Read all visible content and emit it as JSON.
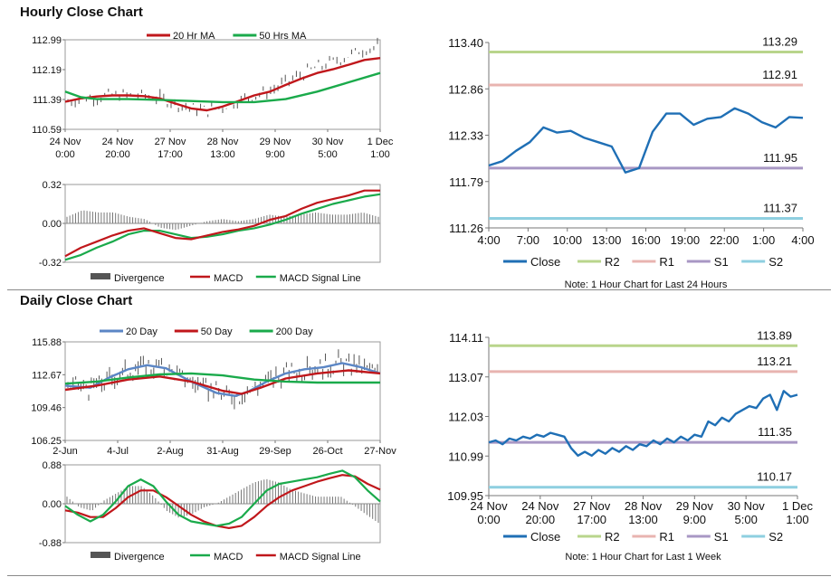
{
  "hourly": {
    "title": "Hourly Close Chart",
    "price": {
      "legend": [
        "20 Hr MA",
        "50 Hrs MA"
      ],
      "y_ticks": [
        "112.99",
        "112.19",
        "111.39",
        "110.59"
      ],
      "x_ticks": [
        [
          "24 Nov",
          "0:00"
        ],
        [
          "24 Nov",
          "20:00"
        ],
        [
          "27 Nov",
          "17:00"
        ],
        [
          "28 Nov",
          "13:00"
        ],
        [
          "29 Nov",
          "9:00"
        ],
        [
          "30 Nov",
          "5:00"
        ],
        [
          "1 Dec",
          "1:00"
        ]
      ],
      "ylim": [
        110.59,
        112.99
      ],
      "ma20": [
        [
          0,
          111.33
        ],
        [
          0.05,
          111.42
        ],
        [
          0.1,
          111.47
        ],
        [
          0.15,
          111.5
        ],
        [
          0.2,
          111.5
        ],
        [
          0.25,
          111.48
        ],
        [
          0.3,
          111.42
        ],
        [
          0.35,
          111.28
        ],
        [
          0.4,
          111.15
        ],
        [
          0.45,
          111.1
        ],
        [
          0.5,
          111.2
        ],
        [
          0.55,
          111.35
        ],
        [
          0.6,
          111.5
        ],
        [
          0.65,
          111.6
        ],
        [
          0.7,
          111.78
        ],
        [
          0.75,
          111.95
        ],
        [
          0.8,
          112.1
        ],
        [
          0.85,
          112.2
        ],
        [
          0.9,
          112.32
        ],
        [
          0.95,
          112.45
        ],
        [
          1.0,
          112.5
        ]
      ],
      "ma50": [
        [
          0,
          111.6
        ],
        [
          0.05,
          111.45
        ],
        [
          0.1,
          111.4
        ],
        [
          0.2,
          111.4
        ],
        [
          0.3,
          111.38
        ],
        [
          0.4,
          111.35
        ],
        [
          0.5,
          111.32
        ],
        [
          0.6,
          111.32
        ],
        [
          0.7,
          111.4
        ],
        [
          0.8,
          111.6
        ],
        [
          0.9,
          111.85
        ],
        [
          1.0,
          112.1
        ]
      ]
    },
    "macd": {
      "legend": [
        "Divergence",
        "MACD",
        "MACD Signal Line"
      ],
      "y_ticks": [
        "0.32",
        "0.00",
        "-0.32"
      ],
      "ylim": [
        -0.32,
        0.32
      ],
      "macd": [
        [
          0,
          -0.27
        ],
        [
          0.05,
          -0.2
        ],
        [
          0.1,
          -0.15
        ],
        [
          0.15,
          -0.1
        ],
        [
          0.2,
          -0.06
        ],
        [
          0.25,
          -0.04
        ],
        [
          0.3,
          -0.08
        ],
        [
          0.35,
          -0.12
        ],
        [
          0.4,
          -0.13
        ],
        [
          0.45,
          -0.1
        ],
        [
          0.5,
          -0.07
        ],
        [
          0.55,
          -0.05
        ],
        [
          0.6,
          -0.02
        ],
        [
          0.65,
          0.03
        ],
        [
          0.7,
          0.06
        ],
        [
          0.75,
          0.12
        ],
        [
          0.8,
          0.17
        ],
        [
          0.85,
          0.2
        ],
        [
          0.9,
          0.23
        ],
        [
          0.95,
          0.27
        ],
        [
          1.0,
          0.27
        ]
      ],
      "signal": [
        [
          0,
          -0.3
        ],
        [
          0.05,
          -0.26
        ],
        [
          0.1,
          -0.2
        ],
        [
          0.15,
          -0.15
        ],
        [
          0.2,
          -0.09
        ],
        [
          0.25,
          -0.06
        ],
        [
          0.3,
          -0.06
        ],
        [
          0.35,
          -0.09
        ],
        [
          0.4,
          -0.12
        ],
        [
          0.45,
          -0.11
        ],
        [
          0.5,
          -0.09
        ],
        [
          0.55,
          -0.06
        ],
        [
          0.6,
          -0.04
        ],
        [
          0.65,
          -0.01
        ],
        [
          0.7,
          0.03
        ],
        [
          0.75,
          0.08
        ],
        [
          0.8,
          0.12
        ],
        [
          0.85,
          0.16
        ],
        [
          0.9,
          0.19
        ],
        [
          0.95,
          0.22
        ],
        [
          1.0,
          0.24
        ]
      ]
    },
    "close": {
      "y_ticks": [
        "113.40",
        "112.86",
        "112.33",
        "111.79",
        "111.26"
      ],
      "ylim": [
        111.26,
        113.4
      ],
      "x_ticks": [
        "4:00",
        "7:00",
        "10:00",
        "13:00",
        "16:00",
        "19:00",
        "22:00",
        "1:00",
        "4:00"
      ],
      "levels": [
        {
          "name": "R2",
          "value": 113.29,
          "label": "113.29",
          "color": "#b9d58c"
        },
        {
          "name": "R1",
          "value": 112.91,
          "label": "112.91",
          "color": "#e8b4b0"
        },
        {
          "name": "S1",
          "value": 111.95,
          "label": "111.95",
          "color": "#a897c4"
        },
        {
          "name": "S2",
          "value": 111.37,
          "label": "111.37",
          "color": "#8ecfe0"
        }
      ],
      "series": [
        111.98,
        112.03,
        112.15,
        112.25,
        112.42,
        112.36,
        112.38,
        112.3,
        112.25,
        112.2,
        111.9,
        111.95,
        112.37,
        112.58,
        112.58,
        112.45,
        112.52,
        112.54,
        112.64,
        112.58,
        112.48,
        112.42,
        112.54,
        112.53
      ],
      "legend": [
        "Close",
        "R2",
        "R1",
        "S1",
        "S2"
      ],
      "note": "Note: 1 Hour Chart for Last 24 Hours"
    }
  },
  "daily": {
    "title": "Daily Close Chart",
    "price": {
      "legend": [
        "20 Day",
        "50 Day",
        "200 Day"
      ],
      "y_ticks": [
        "115.88",
        "112.67",
        "109.46",
        "106.25"
      ],
      "x_ticks": [
        "2-Jun",
        "4-Jul",
        "2-Aug",
        "31-Aug",
        "29-Sep",
        "26-Oct",
        "27-Nov"
      ],
      "ylim": [
        106.25,
        115.88
      ],
      "ma20": [
        [
          0,
          111.6
        ],
        [
          0.08,
          111.4
        ],
        [
          0.14,
          112.4
        ],
        [
          0.2,
          113.2
        ],
        [
          0.26,
          113.6
        ],
        [
          0.32,
          113.3
        ],
        [
          0.4,
          112.0
        ],
        [
          0.48,
          110.9
        ],
        [
          0.54,
          110.6
        ],
        [
          0.58,
          111.0
        ],
        [
          0.64,
          112.0
        ],
        [
          0.7,
          112.8
        ],
        [
          0.76,
          113.2
        ],
        [
          0.82,
          113.4
        ],
        [
          0.88,
          113.8
        ],
        [
          0.94,
          113.4
        ],
        [
          1.0,
          112.8
        ]
      ],
      "ma50": [
        [
          0,
          111.2
        ],
        [
          0.1,
          111.6
        ],
        [
          0.2,
          112.2
        ],
        [
          0.3,
          112.5
        ],
        [
          0.4,
          112.0
        ],
        [
          0.5,
          111.1
        ],
        [
          0.56,
          110.8
        ],
        [
          0.62,
          111.4
        ],
        [
          0.7,
          112.3
        ],
        [
          0.8,
          112.8
        ],
        [
          0.9,
          113.1
        ],
        [
          1.0,
          112.8
        ]
      ],
      "ma200": [
        [
          0,
          111.8
        ],
        [
          0.1,
          112.0
        ],
        [
          0.2,
          112.4
        ],
        [
          0.3,
          112.7
        ],
        [
          0.4,
          112.8
        ],
        [
          0.5,
          112.6
        ],
        [
          0.6,
          112.2
        ],
        [
          0.7,
          112.0
        ],
        [
          0.8,
          111.9
        ],
        [
          0.9,
          111.9
        ],
        [
          1.0,
          111.9
        ]
      ]
    },
    "macd": {
      "legend": [
        "Divergence",
        "MACD",
        "MACD Signal Line"
      ],
      "y_ticks": [
        "0.88",
        "0.00",
        "-0.88"
      ],
      "ylim": [
        -0.88,
        0.88
      ],
      "macd": [
        [
          0,
          -0.05
        ],
        [
          0.04,
          -0.25
        ],
        [
          0.08,
          -0.4
        ],
        [
          0.12,
          -0.25
        ],
        [
          0.16,
          0.05
        ],
        [
          0.2,
          0.4
        ],
        [
          0.24,
          0.55
        ],
        [
          0.28,
          0.4
        ],
        [
          0.32,
          0.05
        ],
        [
          0.36,
          -0.25
        ],
        [
          0.4,
          -0.4
        ],
        [
          0.44,
          -0.45
        ],
        [
          0.48,
          -0.5
        ],
        [
          0.52,
          -0.45
        ],
        [
          0.56,
          -0.3
        ],
        [
          0.6,
          0.0
        ],
        [
          0.64,
          0.3
        ],
        [
          0.68,
          0.45
        ],
        [
          0.72,
          0.5
        ],
        [
          0.76,
          0.55
        ],
        [
          0.8,
          0.6
        ],
        [
          0.84,
          0.68
        ],
        [
          0.88,
          0.75
        ],
        [
          0.92,
          0.6
        ],
        [
          0.96,
          0.3
        ],
        [
          1.0,
          0.05
        ]
      ],
      "signal": [
        [
          0,
          -0.15
        ],
        [
          0.04,
          -0.2
        ],
        [
          0.08,
          -0.3
        ],
        [
          0.12,
          -0.3
        ],
        [
          0.16,
          -0.1
        ],
        [
          0.2,
          0.15
        ],
        [
          0.24,
          0.3
        ],
        [
          0.28,
          0.3
        ],
        [
          0.32,
          0.15
        ],
        [
          0.36,
          -0.05
        ],
        [
          0.4,
          -0.25
        ],
        [
          0.44,
          -0.4
        ],
        [
          0.48,
          -0.5
        ],
        [
          0.52,
          -0.55
        ],
        [
          0.56,
          -0.5
        ],
        [
          0.6,
          -0.3
        ],
        [
          0.64,
          -0.05
        ],
        [
          0.68,
          0.15
        ],
        [
          0.72,
          0.3
        ],
        [
          0.76,
          0.4
        ],
        [
          0.8,
          0.5
        ],
        [
          0.84,
          0.58
        ],
        [
          0.88,
          0.65
        ],
        [
          0.92,
          0.62
        ],
        [
          0.96,
          0.45
        ],
        [
          1.0,
          0.32
        ]
      ]
    },
    "close": {
      "y_ticks": [
        "114.11",
        "113.07",
        "112.03",
        "110.99",
        "109.95"
      ],
      "ylim": [
        109.95,
        114.11
      ],
      "x_ticks": [
        [
          "24 Nov",
          "0:00"
        ],
        [
          "24 Nov",
          "20:00"
        ],
        [
          "27 Nov",
          "17:00"
        ],
        [
          "28 Nov",
          "13:00"
        ],
        [
          "29 Nov",
          "9:00"
        ],
        [
          "30 Nov",
          "5:00"
        ],
        [
          "1 Dec",
          "1:00"
        ]
      ],
      "levels": [
        {
          "name": "R2",
          "value": 113.89,
          "label": "113.89",
          "color": "#b9d58c"
        },
        {
          "name": "R1",
          "value": 113.21,
          "label": "113.21",
          "color": "#e8b4b0"
        },
        {
          "name": "S1",
          "value": 111.35,
          "label": "111.35",
          "color": "#a897c4"
        },
        {
          "name": "S2",
          "value": 110.17,
          "label": "110.17",
          "color": "#8ecfe0"
        }
      ],
      "series": [
        111.35,
        111.4,
        111.3,
        111.45,
        111.4,
        111.5,
        111.45,
        111.55,
        111.5,
        111.6,
        111.55,
        111.5,
        111.2,
        111.0,
        111.1,
        111.0,
        111.15,
        111.05,
        111.2,
        111.1,
        111.25,
        111.15,
        111.3,
        111.25,
        111.4,
        111.3,
        111.45,
        111.35,
        111.5,
        111.4,
        111.55,
        111.5,
        111.9,
        111.8,
        112.0,
        111.9,
        112.1,
        112.2,
        112.3,
        112.25,
        112.5,
        112.6,
        112.2,
        112.7,
        112.55,
        112.6
      ],
      "legend": [
        "Close",
        "R2",
        "R1",
        "S1",
        "S2"
      ],
      "note": "Note: 1 Hour Chart for Last 1 Week"
    }
  },
  "colors": {
    "ma20_hourly": "#c0171b",
    "ma50_hourly": "#1aaa4b",
    "ma20_daily": "#5b86c5",
    "ma50_daily": "#c0171b",
    "ma200_daily": "#1aaa4b",
    "close_line": "#1f6fb5",
    "bars": "#555555",
    "divergence": "#777777"
  }
}
